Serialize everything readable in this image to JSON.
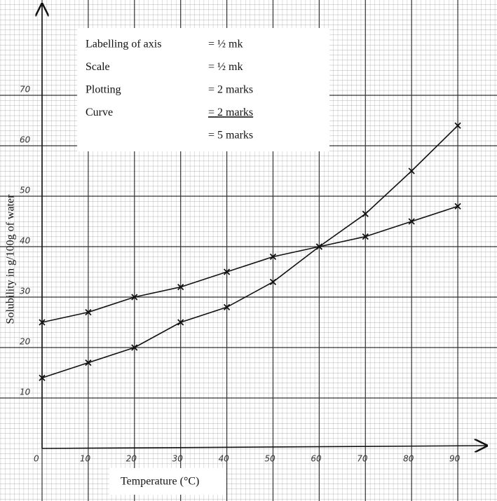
{
  "chart_data": {
    "type": "line",
    "x_label": "Temperature (°C)",
    "y_label": "Solubility in g/100g of water",
    "x": [
      0,
      10,
      20,
      30,
      40,
      50,
      60,
      70,
      80,
      90
    ],
    "series": [
      {
        "color": "#111111",
        "values": [
          14,
          17,
          20,
          25,
          28,
          33,
          40,
          46.5,
          55,
          64
        ]
      },
      {
        "color": "#111111",
        "values": [
          25,
          27,
          30,
          32,
          35,
          38,
          40,
          42,
          45,
          48
        ]
      }
    ],
    "xlim": [
      0,
      95
    ],
    "ylim": [
      0,
      87
    ],
    "xticks": [
      0,
      10,
      20,
      30,
      40,
      50,
      60,
      70,
      80,
      90
    ],
    "yticks": [
      10,
      20,
      30,
      40,
      50,
      60,
      70
    ],
    "grid": true,
    "marking_scheme": {
      "items": [
        {
          "label": "Labelling of axis",
          "score": "= ½ mk"
        },
        {
          "label": "Scale",
          "score": "= ½ mk"
        },
        {
          "label": "Plotting",
          "score": "= 2 marks"
        },
        {
          "label": "Curve",
          "score": "= 2 marks",
          "underlined": true
        }
      ],
      "total": "= 5 marks"
    }
  }
}
